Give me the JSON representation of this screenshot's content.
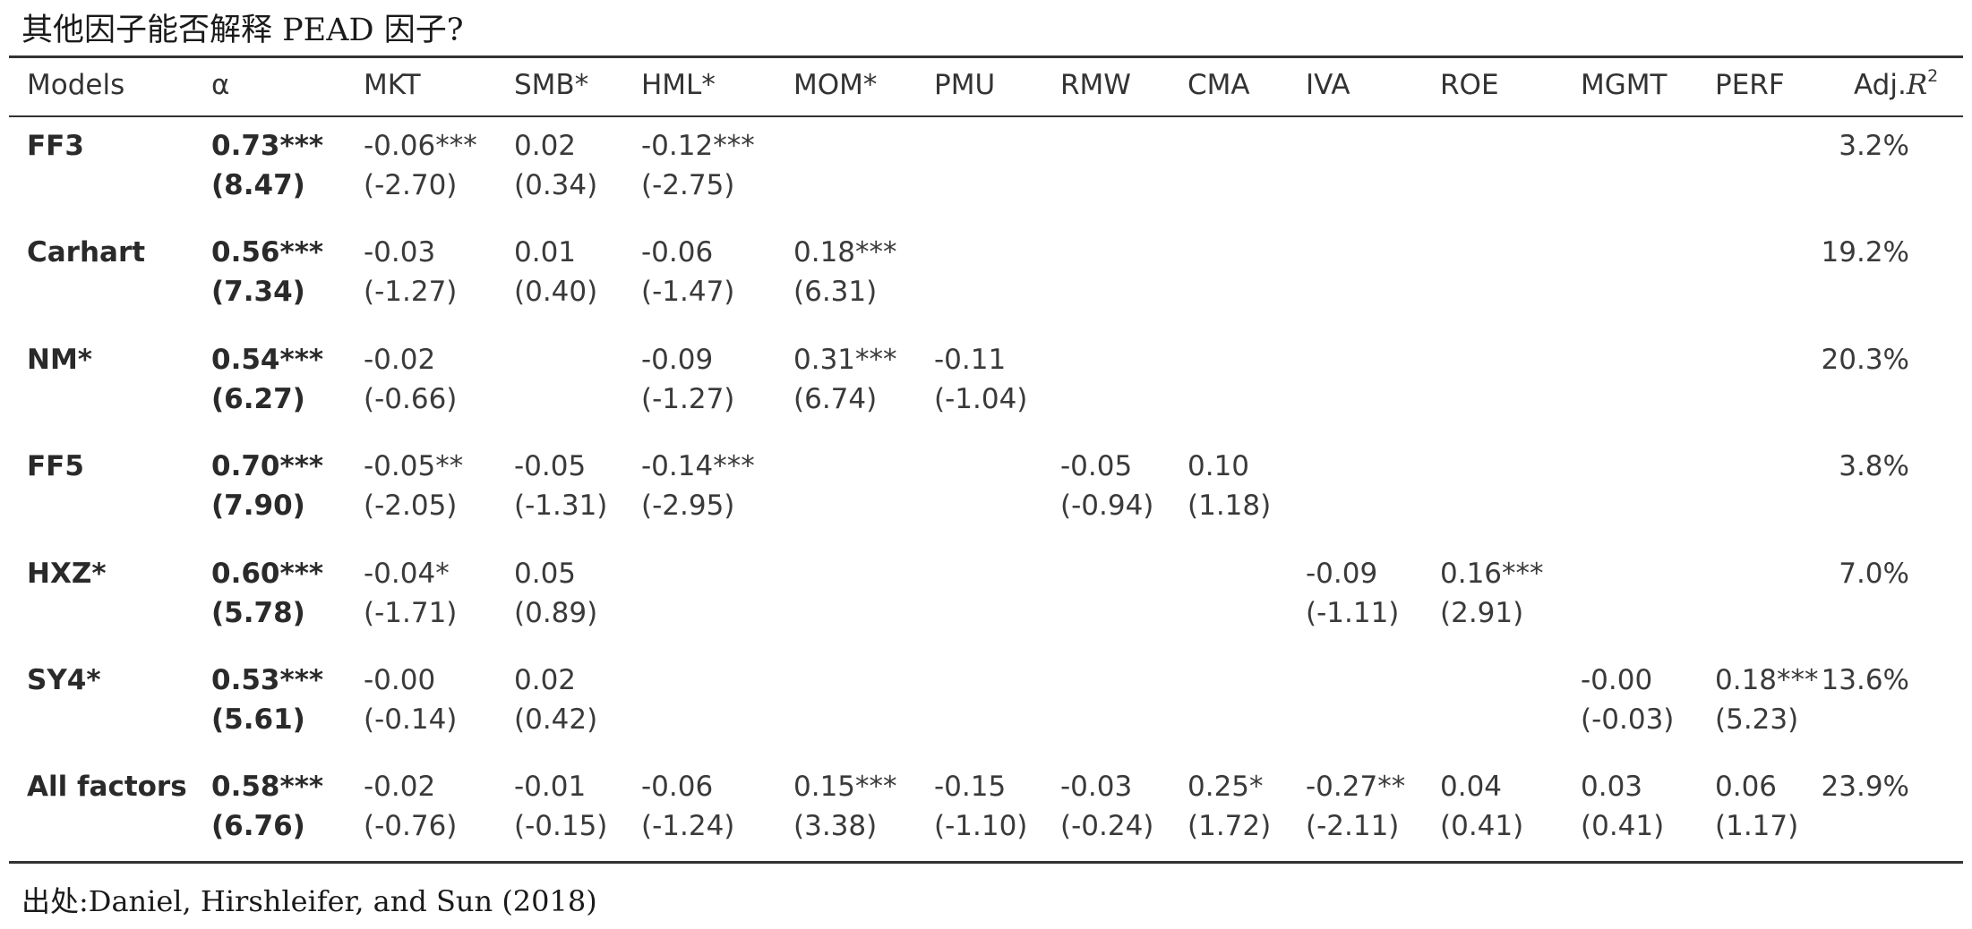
{
  "title": "其他因子能否解释 PEAD 因子?",
  "source": "出处:Daniel, Hirshleifer, and Sun (2018)",
  "table": {
    "headers": {
      "models": "Models",
      "alpha": "α",
      "mkt": "MKT",
      "smb": "SMB*",
      "hml": "HML*",
      "mom": "MOM*",
      "pmu": "PMU",
      "rmw": "RMW",
      "cma": "CMA",
      "iva": "IVA",
      "roe": "ROE",
      "mgmt": "MGMT",
      "perf": "PERF",
      "adjr2_prefix": "Adj.",
      "adjr2_var": "R",
      "adjr2_sup": "2"
    },
    "rows": [
      {
        "model": "FF3",
        "alpha": "0.73***",
        "alpha_t": "(8.47)",
        "mkt": "-0.06***",
        "mkt_t": "(-2.70)",
        "smb": "0.02",
        "smb_t": "(0.34)",
        "hml": "-0.12***",
        "hml_t": "(-2.75)",
        "adjr2": "3.2%"
      },
      {
        "model": "Carhart",
        "alpha": "0.56***",
        "alpha_t": "(7.34)",
        "mkt": "-0.03",
        "mkt_t": "(-1.27)",
        "smb": "0.01",
        "smb_t": "(0.40)",
        "hml": "-0.06",
        "hml_t": "(-1.47)",
        "mom": "0.18***",
        "mom_t": "(6.31)",
        "adjr2": "19.2%"
      },
      {
        "model": "NM*",
        "alpha": "0.54***",
        "alpha_t": "(6.27)",
        "mkt": "-0.02",
        "mkt_t": "(-0.66)",
        "hml": "-0.09",
        "hml_t": "(-1.27)",
        "mom": "0.31***",
        "mom_t": "(6.74)",
        "pmu": "-0.11",
        "pmu_t": "(-1.04)",
        "adjr2": "20.3%"
      },
      {
        "model": "FF5",
        "alpha": "0.70***",
        "alpha_t": "(7.90)",
        "mkt": "-0.05**",
        "mkt_t": "(-2.05)",
        "smb": "-0.05",
        "smb_t": "(-1.31)",
        "hml": "-0.14***",
        "hml_t": "(-2.95)",
        "rmw": "-0.05",
        "rmw_t": "(-0.94)",
        "cma": "0.10",
        "cma_t": "(1.18)",
        "adjr2": "3.8%"
      },
      {
        "model": "HXZ*",
        "alpha": "0.60***",
        "alpha_t": "(5.78)",
        "mkt": "-0.04*",
        "mkt_t": "(-1.71)",
        "smb": "0.05",
        "smb_t": "(0.89)",
        "iva": "-0.09",
        "iva_t": "(-1.11)",
        "roe": "0.16***",
        "roe_t": "(2.91)",
        "adjr2": "7.0%"
      },
      {
        "model": "SY4*",
        "alpha": "0.53***",
        "alpha_t": "(5.61)",
        "mkt": "-0.00",
        "mkt_t": "(-0.14)",
        "smb": "0.02",
        "smb_t": "(0.42)",
        "mgmt": "-0.00",
        "mgmt_t": "(-0.03)",
        "perf": "0.18***",
        "perf_t": "(5.23)",
        "adjr2": "13.6%"
      },
      {
        "model": "All factors",
        "alpha": "0.58***",
        "alpha_t": "(6.76)",
        "mkt": "-0.02",
        "mkt_t": "(-0.76)",
        "smb": "-0.01",
        "smb_t": "(-0.15)",
        "hml": "-0.06",
        "hml_t": "(-1.24)",
        "mom": "0.15***",
        "mom_t": "(3.38)",
        "pmu": "-0.15",
        "pmu_t": "(-1.10)",
        "rmw": "-0.03",
        "rmw_t": "(-0.24)",
        "cma": "0.25*",
        "cma_t": "(1.72)",
        "iva": "-0.27**",
        "iva_t": "(-2.11)",
        "roe": "0.04",
        "roe_t": "(0.41)",
        "mgmt": "0.03",
        "mgmt_t": "(0.41)",
        "perf": "0.06",
        "perf_t": "(1.17)",
        "adjr2": "23.9%"
      }
    ]
  }
}
